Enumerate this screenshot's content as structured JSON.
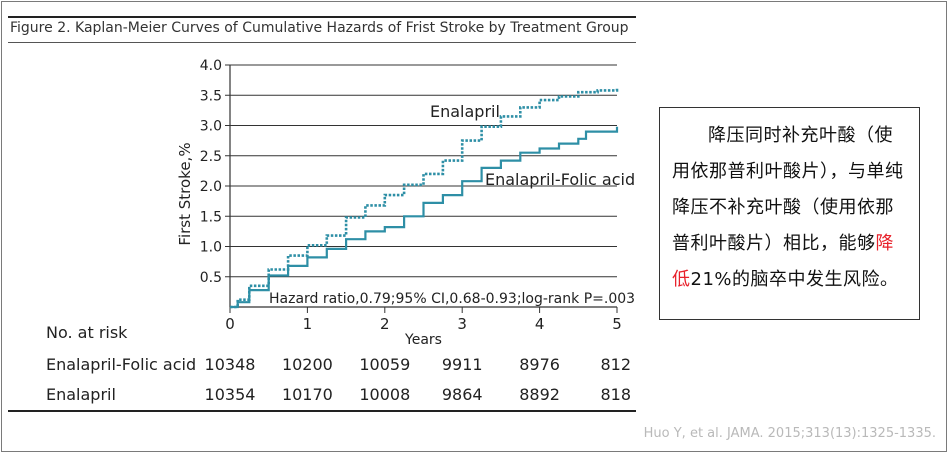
{
  "figure": {
    "title": "Figure 2. Kaplan-Meier Curves of Cumulative Hazards of Frist Stroke by Treatment Group"
  },
  "chart_data": {
    "type": "line",
    "ylabel": "First Stroke,%",
    "xlabel": "Years",
    "xlim": [
      0,
      5
    ],
    "ylim": [
      0,
      4.0
    ],
    "x_ticks": [
      "0",
      "1",
      "2",
      "3",
      "4",
      "5"
    ],
    "y_ticks": [
      "0.5",
      "1.0",
      "1.5",
      "2.0",
      "2.5",
      "3.0",
      "3.5",
      "4.0"
    ],
    "grid": "horizontal",
    "series": [
      {
        "name": "Enalapril",
        "color": "#2e8fa6",
        "style": "dotted",
        "x": [
          0,
          0.1,
          0.25,
          0.5,
          0.75,
          1.0,
          1.25,
          1.5,
          1.75,
          2.0,
          2.25,
          2.5,
          2.75,
          3.0,
          3.25,
          3.5,
          3.75,
          4.0,
          4.25,
          4.5,
          4.75,
          5.0
        ],
        "y": [
          0,
          0.12,
          0.35,
          0.62,
          0.85,
          1.02,
          1.18,
          1.48,
          1.68,
          1.85,
          2.02,
          2.2,
          2.42,
          2.75,
          2.98,
          3.15,
          3.3,
          3.42,
          3.48,
          3.55,
          3.58,
          3.62
        ]
      },
      {
        "name": "Enalapril-Folic acid",
        "color": "#2e8fa6",
        "style": "solid",
        "x": [
          0,
          0.1,
          0.25,
          0.5,
          0.75,
          1.0,
          1.25,
          1.5,
          1.75,
          2.0,
          2.25,
          2.5,
          2.75,
          3.0,
          3.25,
          3.5,
          3.75,
          4.0,
          4.25,
          4.5,
          4.6,
          4.75,
          5.0
        ],
        "y": [
          0,
          0.08,
          0.28,
          0.52,
          0.68,
          0.82,
          0.96,
          1.12,
          1.25,
          1.32,
          1.5,
          1.72,
          1.85,
          2.08,
          2.3,
          2.42,
          2.55,
          2.62,
          2.7,
          2.78,
          2.9,
          2.9,
          2.98
        ]
      }
    ],
    "annotation": "Hazard ratio,0.79;95% CI,0.68-0.93;log-rank P=.003",
    "risk_table": {
      "header": "No. at risk",
      "rows": [
        {
          "label": "Enalapril-Folic acid",
          "values": [
            "10348",
            "10200",
            "10059",
            "9911",
            "8976",
            "812"
          ]
        },
        {
          "label": "Enalapril",
          "values": [
            "10354",
            "10170",
            "10008",
            "9864",
            "8892",
            "818"
          ]
        }
      ]
    }
  },
  "note": {
    "text_before": "降压同时补充叶酸（使用依那普利叶酸片），与单纯降压不补充叶酸（使用依那普利叶酸片）相比，能够",
    "highlight": "降低",
    "text_after": "21%的脑卒中发生风险。",
    "highlight_color": "#e8202a"
  },
  "citation": "Huo Y, et al. JAMA. 2015;313(13):1325-1335."
}
